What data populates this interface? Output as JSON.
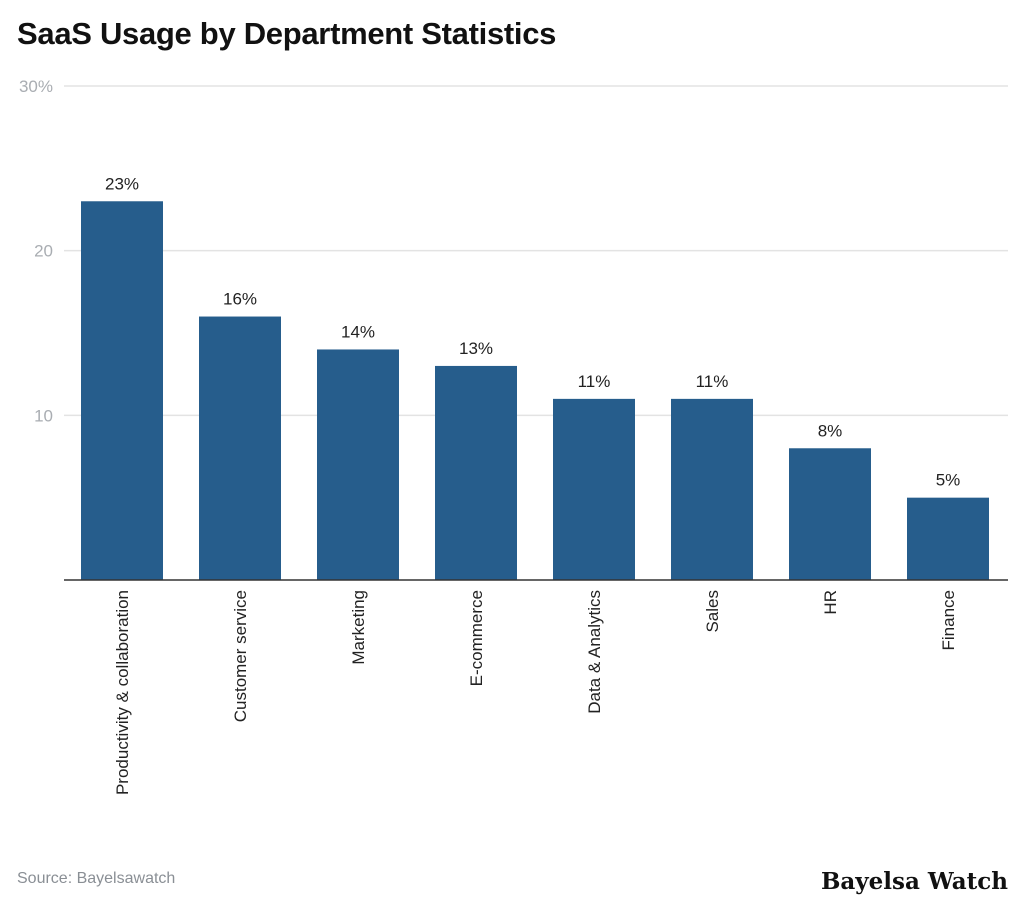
{
  "chart_data": {
    "type": "bar",
    "title": "SaaS Usage by Department Statistics",
    "categories": [
      "Productivity & collaboration",
      "Customer service",
      "Marketing",
      "E-commerce",
      "Data & Analytics",
      "Sales",
      "HR",
      "Finance"
    ],
    "values": [
      23,
      16,
      14,
      13,
      11,
      11,
      8,
      5
    ],
    "data_labels": [
      "23%",
      "16%",
      "14%",
      "13%",
      "11%",
      "11%",
      "8%",
      "5%"
    ],
    "y_ticks": [
      {
        "value": 10,
        "label": "10"
      },
      {
        "value": 20,
        "label": "20"
      },
      {
        "value": 30,
        "label": "30%"
      }
    ],
    "ylim": [
      0,
      30
    ],
    "xlabel": "",
    "ylabel": "",
    "grid": true,
    "bar_color": "#265d8c"
  },
  "source": "Source: Bayelsawatch",
  "logo": "Bayelsa Watch"
}
